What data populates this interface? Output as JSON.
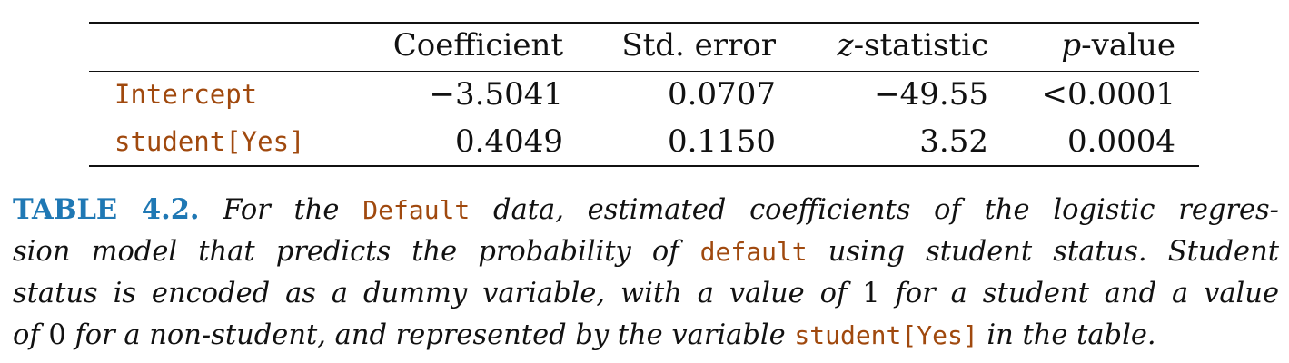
{
  "table": {
    "headers": [
      "",
      "Coefficient",
      "Std. error",
      "z-statistic",
      "p-value"
    ],
    "header_parts": {
      "z_symbol": "z",
      "z_rest": "-statistic",
      "p_symbol": "p",
      "p_rest": "-value"
    },
    "rows": [
      [
        "Intercept",
        "−3.5041",
        "0.0707",
        "−49.55",
        "<0.0001"
      ],
      [
        "student[Yes]",
        "0.4049",
        "0.1150",
        "3.52",
        "0.0004"
      ]
    ]
  },
  "caption": {
    "label": "TABLE 4.2.",
    "line1_a": " For the ",
    "line1_code": "Default",
    "line1_b": " data, estimated coefficients of the logistic regres-",
    "line2_a": "sion model that predicts the probability of ",
    "line2_code": "default",
    "line2_b": " using student status. Student",
    "line3_a": "status is encoded as a dummy variable, with a value of ",
    "line3_num": "1",
    "line3_b": " for a student and a value",
    "line4_a": "of ",
    "line4_num": "0",
    "line4_b": " for a non-student, and represented by the variable ",
    "line4_code": "student[Yes]",
    "line4_c": " in the table."
  },
  "colors": {
    "code": "#a0490e",
    "label": "#1f78b4"
  }
}
